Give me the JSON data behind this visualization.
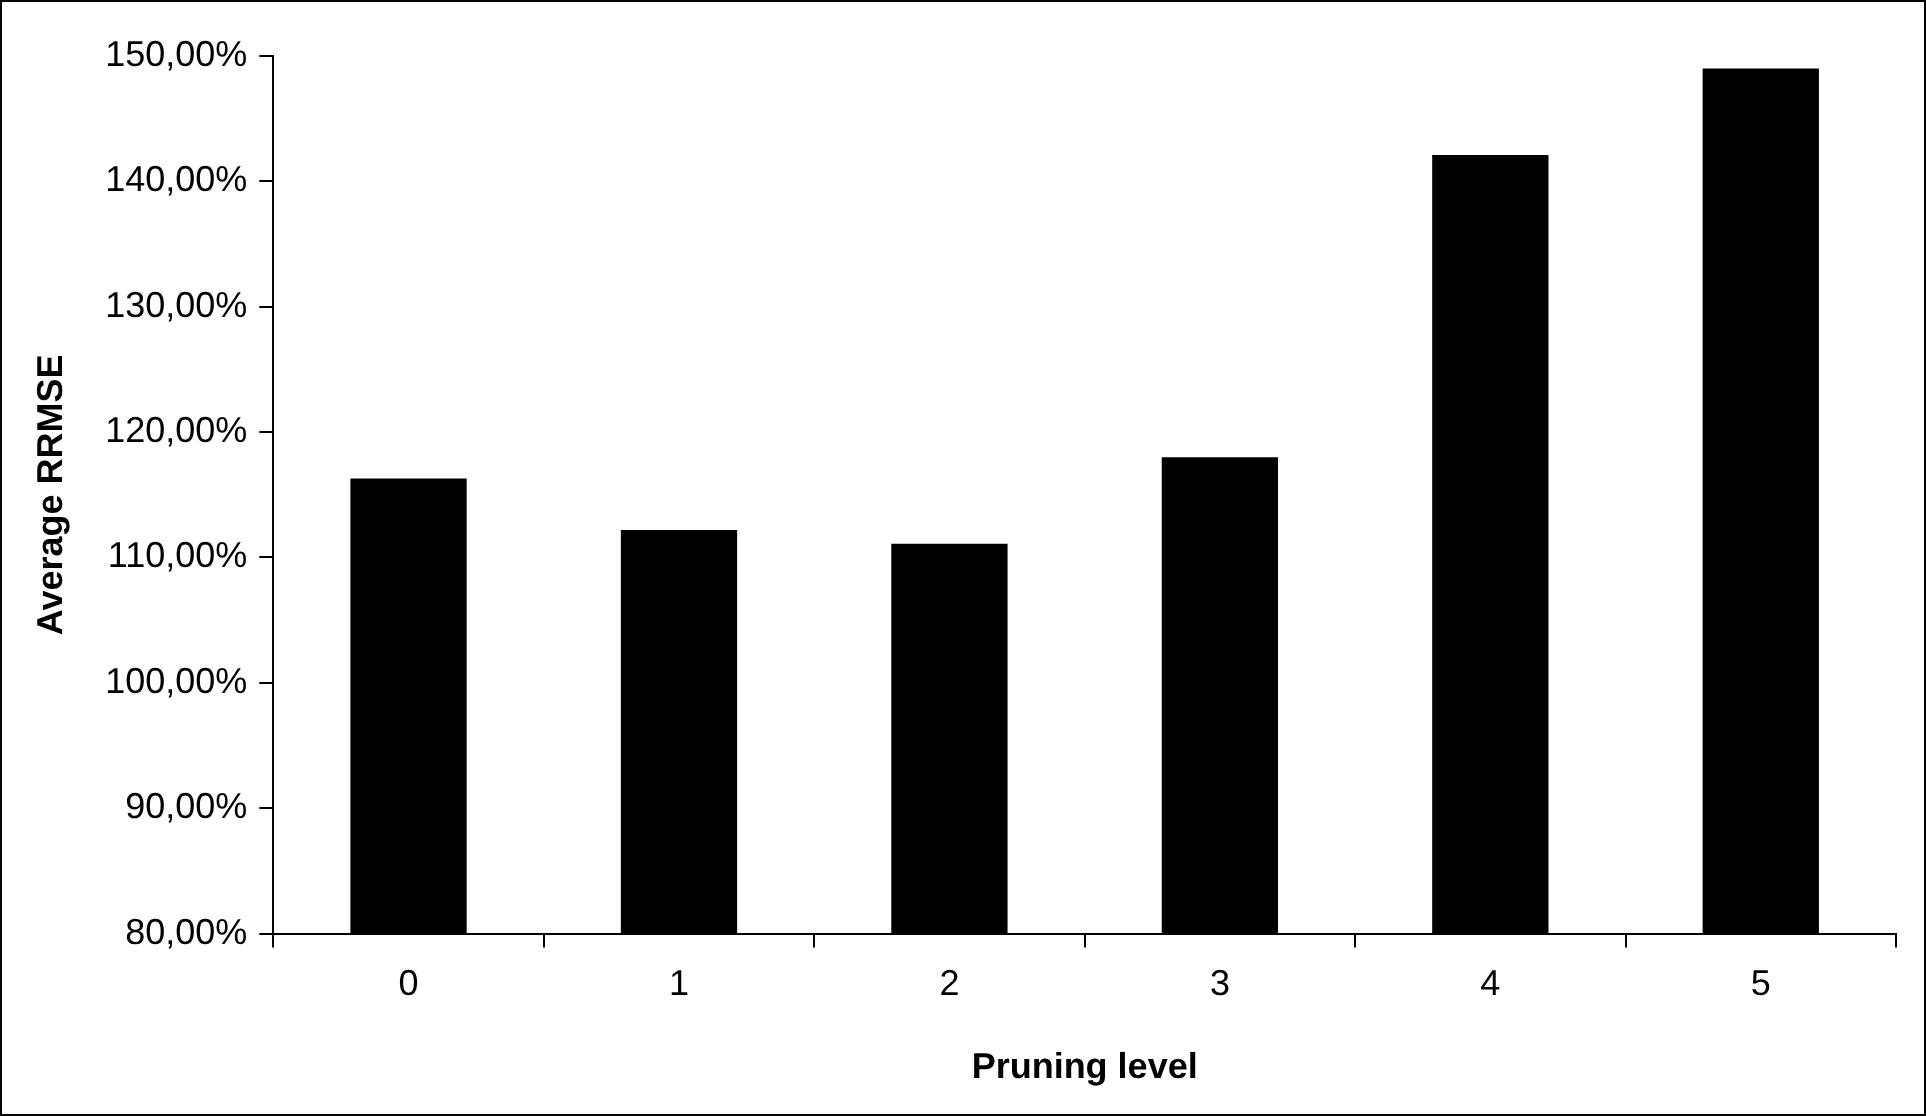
{
  "chart_data": {
    "type": "bar",
    "xlabel": "Pruning level",
    "ylabel": "Average RRMSE",
    "categories": [
      "0",
      "1",
      "2",
      "3",
      "4",
      "5"
    ],
    "values": [
      116.3,
      112.2,
      111.1,
      118.0,
      142.1,
      149.0
    ],
    "color": "#000000",
    "ylim": [
      80,
      150
    ],
    "yticks": [
      {
        "value": 80,
        "label": "80,00%"
      },
      {
        "value": 90,
        "label": "90,00%"
      },
      {
        "value": 100,
        "label": "100,00%"
      },
      {
        "value": 110,
        "label": "110,00%"
      },
      {
        "value": 120,
        "label": "120,00%"
      },
      {
        "value": 130,
        "label": "130,00%"
      },
      {
        "value": 140,
        "label": "140,00%"
      },
      {
        "value": 150,
        "label": "150,00%"
      }
    ],
    "grid": false,
    "legend": false
  }
}
